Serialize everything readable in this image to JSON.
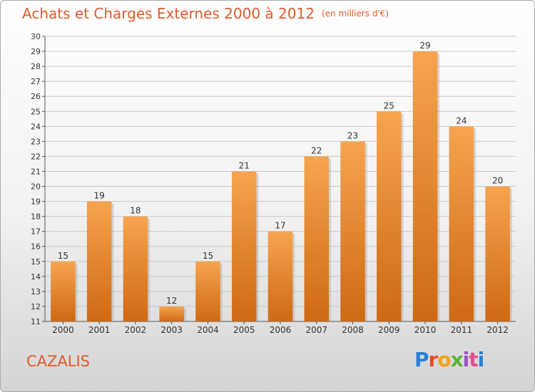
{
  "header": {
    "title": "Achats et Charges Externes 2000 à 2012",
    "unit": "(en milliers d'€)"
  },
  "footer": {
    "commune": "CAZALIS",
    "logo_text": "Proxiti"
  },
  "colors": {
    "title": "#e05a2a",
    "bar_top": "#f5a04a",
    "bar_bottom": "#d06a12"
  },
  "chart_data": {
    "type": "bar",
    "title": "Achats et Charges Externes 2000 à 2012",
    "subtitle": "(en milliers d'€)",
    "categories": [
      "2000",
      "2001",
      "2002",
      "2003",
      "2004",
      "2005",
      "2006",
      "2007",
      "2008",
      "2009",
      "2010",
      "2011",
      "2012"
    ],
    "values": [
      15,
      19,
      18,
      12,
      15,
      21,
      17,
      22,
      23,
      25,
      29,
      24,
      20
    ],
    "ylim": [
      11,
      30
    ],
    "yticks": [
      11,
      12,
      13,
      14,
      15,
      16,
      17,
      18,
      19,
      20,
      21,
      22,
      23,
      24,
      25,
      26,
      27,
      28,
      29,
      30
    ],
    "grid": true,
    "xlabel": "",
    "ylabel": ""
  }
}
